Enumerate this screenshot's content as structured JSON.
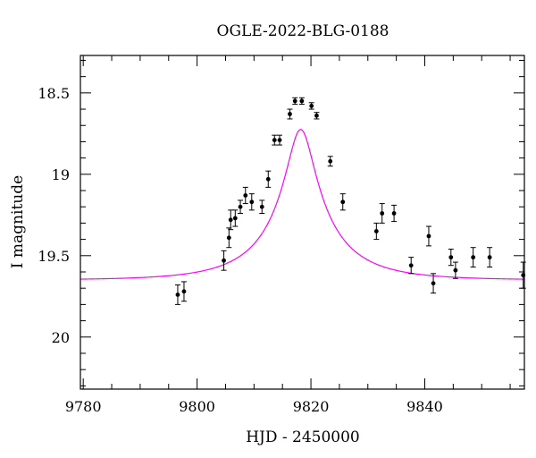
{
  "chart_data": {
    "type": "scatter",
    "title": "OGLE-2022-BLG-0188",
    "xlabel": "HJD - 2450000",
    "ylabel": "I magnitude",
    "xlim": [
      9779.5,
      9857.5
    ],
    "ylim": [
      20.32,
      18.27
    ],
    "y_inverted": true,
    "grid": false,
    "x_ticks": [
      9780,
      9800,
      9820,
      9840
    ],
    "x_tick_labels": [
      "9780",
      "9800",
      "9820",
      "9840"
    ],
    "y_ticks": [
      18.5,
      19,
      19.5,
      20
    ],
    "y_tick_labels": [
      "18.5",
      "19",
      "19.5",
      "20"
    ],
    "marker_color": "#000000",
    "model_color": "#ff00ff",
    "model": {
      "type": "pspl",
      "t0": 9818.2,
      "u0": 0.1846,
      "tE": 13.0,
      "baseline_mag": 19.65,
      "blend_fraction_source": 0.3
    },
    "series": [
      {
        "x": [
          9796.6,
          9797.7,
          9804.7,
          9805.6,
          9805.9,
          9806.7,
          9807.6,
          9808.5,
          9809.6,
          9811.4,
          9812.5,
          9813.6,
          9814.5,
          9816.3,
          9817.2,
          9818.4,
          9820.1,
          9821.0,
          9823.4,
          9825.6,
          9831.5,
          9832.5,
          9834.6,
          9837.6,
          9840.7,
          9841.5,
          9844.6,
          9845.4,
          9848.5,
          9851.4,
          9857.3
        ],
        "y": [
          19.74,
          19.72,
          19.53,
          19.39,
          19.28,
          19.27,
          19.2,
          19.13,
          19.17,
          19.2,
          19.03,
          18.79,
          18.79,
          18.63,
          18.55,
          18.55,
          18.58,
          18.64,
          18.92,
          19.17,
          19.35,
          19.24,
          19.24,
          19.56,
          19.38,
          19.67,
          19.51,
          19.59,
          19.51,
          19.51,
          19.62
        ],
        "err": [
          0.06,
          0.06,
          0.06,
          0.06,
          0.06,
          0.05,
          0.04,
          0.05,
          0.05,
          0.04,
          0.05,
          0.03,
          0.03,
          0.03,
          0.02,
          0.02,
          0.02,
          0.02,
          0.03,
          0.05,
          0.05,
          0.06,
          0.05,
          0.05,
          0.06,
          0.06,
          0.05,
          0.05,
          0.06,
          0.06,
          0.08
        ]
      }
    ]
  }
}
